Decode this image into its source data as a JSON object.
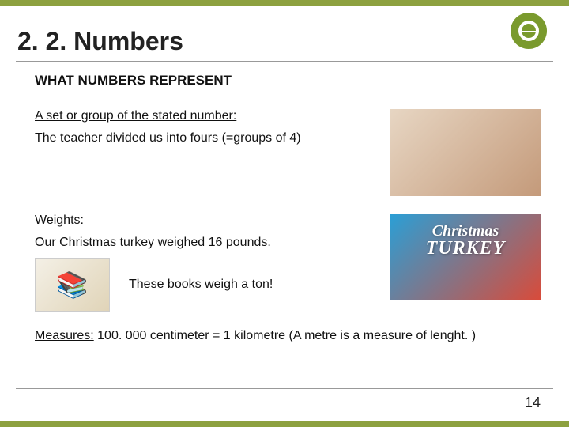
{
  "colors": {
    "accent": "#8da13f",
    "logo_bg": "#7a9a2d",
    "rule": "#999999",
    "text": "#111111"
  },
  "header": {
    "title": "2. 2. Numbers"
  },
  "subheading": "WHAT NUMBERS REPRESENT",
  "sections": {
    "set_group": {
      "label": "A set or group of the stated number:",
      "example": "The teacher divided us into fours (=groups of 4)"
    },
    "weights": {
      "label": "Weights:",
      "example1": "Our Christmas turkey weighed 16 pounds.",
      "example2": "These books weigh a ton!"
    },
    "measures": {
      "label": "Measures:",
      "text": " 100. 000 centimeter = 1 kilometre  (A metre is a measure of lenght. )"
    }
  },
  "images": {
    "classroom_alt": "teacher dividing children into groups",
    "turkey_alt": "Christmas turkey graphic",
    "turkey_line1": "Christmas",
    "turkey_line2": "TURKEY",
    "books_alt": "stack of books"
  },
  "page_number": "14",
  "logo_name": "institution-logo"
}
